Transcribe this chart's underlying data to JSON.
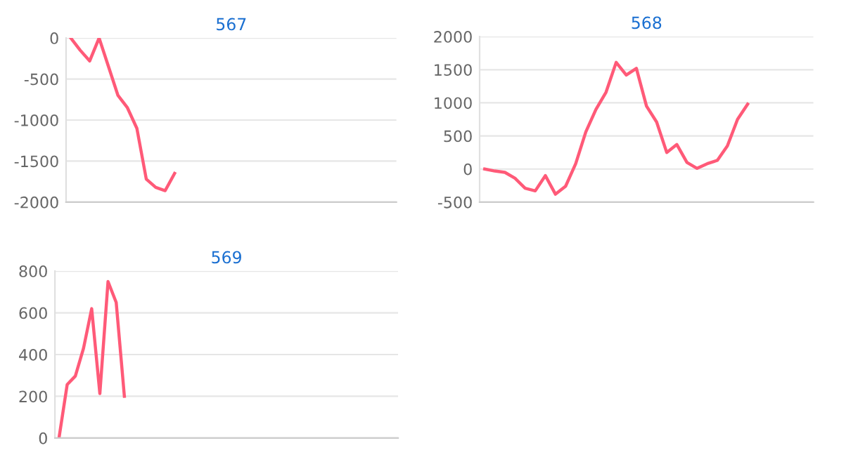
{
  "chart_data": [
    {
      "type": "line",
      "title": "567",
      "categories": [
        null,
        null,
        null,
        null,
        null,
        null,
        null,
        null,
        null,
        null,
        null,
        null,
        null,
        null,
        null,
        null,
        null,
        null,
        null,
        null,
        null,
        null,
        null,
        null,
        null,
        null,
        null,
        null,
        null,
        null,
        null,
        null,
        null,
        null,
        null
      ],
      "series": [
        {
          "color": "#ff5a78",
          "values": [
            0,
            -150,
            -280,
            0,
            -350,
            -700,
            -850,
            -1100,
            -1720,
            -1820,
            -1860,
            -1650,
            null,
            null,
            null,
            null,
            null,
            null,
            null,
            null,
            null,
            null,
            null,
            null,
            null,
            null,
            null,
            null,
            null,
            null,
            null,
            null,
            null,
            null,
            null
          ]
        }
      ],
      "ylim": [
        -2000,
        0
      ],
      "yticks": [
        -2000,
        -1500,
        -1000,
        -500,
        0
      ],
      "grid": "y",
      "marker": "none",
      "line_style": "solid",
      "tick_labels": "y"
    },
    {
      "type": "line",
      "title": "568",
      "categories": [
        null,
        null,
        null,
        null,
        null,
        null,
        null,
        null,
        null,
        null,
        null,
        null,
        null,
        null,
        null,
        null,
        null,
        null,
        null,
        null,
        null,
        null,
        null,
        null,
        null,
        null,
        null,
        null,
        null,
        null,
        null,
        null,
        null
      ],
      "series": [
        {
          "color": "#ff5a78",
          "values": [
            0,
            -30,
            -50,
            -140,
            -290,
            -330,
            -100,
            -380,
            -260,
            80,
            560,
            900,
            1160,
            1610,
            1420,
            1520,
            950,
            710,
            250,
            370,
            100,
            10,
            80,
            130,
            350,
            750,
            980,
            null,
            null,
            null,
            null,
            null,
            null
          ]
        }
      ],
      "ylim": [
        -500,
        2000
      ],
      "yticks": [
        -500,
        0,
        500,
        1000,
        1500,
        2000
      ],
      "grid": "y",
      "marker": "none",
      "line_style": "solid",
      "tick_labels": "y"
    },
    {
      "type": "line",
      "title": "569",
      "categories": [
        null,
        null,
        null,
        null,
        null,
        null,
        null,
        null,
        null,
        null,
        null,
        null,
        null,
        null,
        null,
        null,
        null,
        null,
        null,
        null,
        null,
        null,
        null,
        null,
        null,
        null,
        null,
        null,
        null,
        null,
        null,
        null,
        null,
        null,
        null,
        null,
        null,
        null,
        null,
        null,
        null,
        null
      ],
      "series": [
        {
          "color": "#ff5a78",
          "values": [
            0,
            256,
            297,
            430,
            620,
            213,
            750,
            650,
            200,
            null,
            null,
            null,
            null,
            null,
            null,
            null,
            null,
            null,
            null,
            null,
            null,
            null,
            null,
            null,
            null,
            null,
            null,
            null,
            null,
            null,
            null,
            null,
            null,
            null,
            null,
            null,
            null,
            null,
            null,
            null,
            null,
            null
          ]
        }
      ],
      "ylim": [
        0,
        800
      ],
      "yticks": [
        0,
        200,
        400,
        600,
        800
      ],
      "grid": "y",
      "marker": "none",
      "line_style": "solid",
      "tick_labels": "y"
    }
  ]
}
